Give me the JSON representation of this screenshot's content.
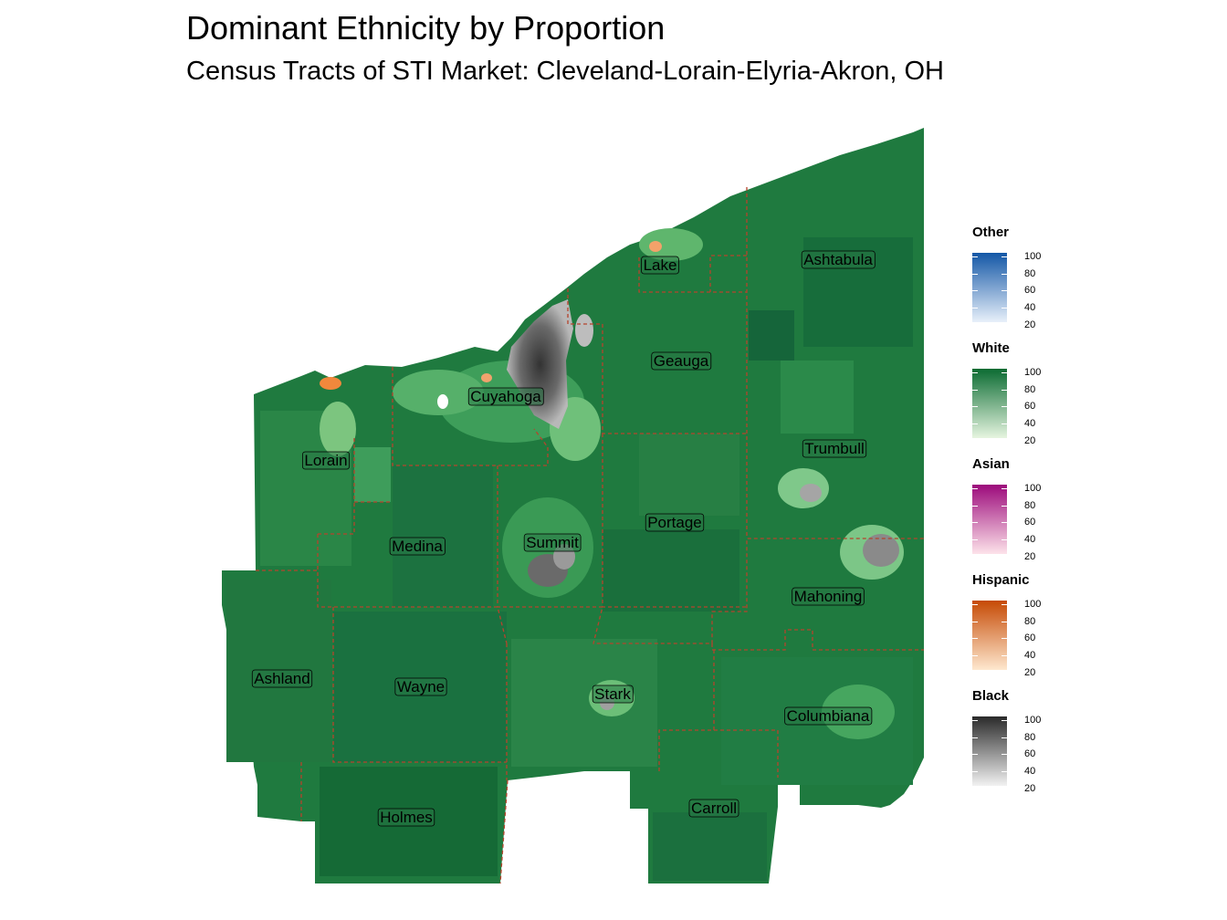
{
  "title": "Dominant Ethnicity by Proportion",
  "subtitle": "Census Tracts of STI Market: Cleveland-Lorain-Elyria-Akron, OH",
  "map": {
    "region": "Cleveland-Lorain-Elyria-Akron, OH",
    "base_color": "#1f7a3f",
    "county_border_color": "#b5442c",
    "counties": [
      {
        "name": "Lake"
      },
      {
        "name": "Ashtabula"
      },
      {
        "name": "Geauga"
      },
      {
        "name": "Cuyahoga"
      },
      {
        "name": "Trumbull"
      },
      {
        "name": "Lorain"
      },
      {
        "name": "Summit"
      },
      {
        "name": "Portage"
      },
      {
        "name": "Medina"
      },
      {
        "name": "Mahoning"
      },
      {
        "name": "Ashland"
      },
      {
        "name": "Wayne"
      },
      {
        "name": "Stark"
      },
      {
        "name": "Columbiana"
      },
      {
        "name": "Carroll"
      },
      {
        "name": "Holmes"
      }
    ]
  },
  "legend": [
    {
      "title": "Other",
      "color_low": "#e8f0fa",
      "color_high": "#1357a6",
      "ticks": [
        "100",
        "80",
        "60",
        "40",
        "20"
      ]
    },
    {
      "title": "White",
      "color_low": "#e6f5e0",
      "color_high": "#0b6b32",
      "ticks": [
        "100",
        "80",
        "60",
        "40",
        "20"
      ]
    },
    {
      "title": "Asian",
      "color_low": "#fde3ea",
      "color_high": "#9c0a7b",
      "ticks": [
        "100",
        "80",
        "60",
        "40",
        "20"
      ]
    },
    {
      "title": "Hispanic",
      "color_low": "#fee8cf",
      "color_high": "#c64a05",
      "ticks": [
        "100",
        "80",
        "60",
        "40",
        "20"
      ]
    },
    {
      "title": "Black",
      "color_low": "#f2f2f2",
      "color_high": "#2a2a2a",
      "ticks": [
        "100",
        "80",
        "60",
        "40",
        "20"
      ]
    }
  ]
}
